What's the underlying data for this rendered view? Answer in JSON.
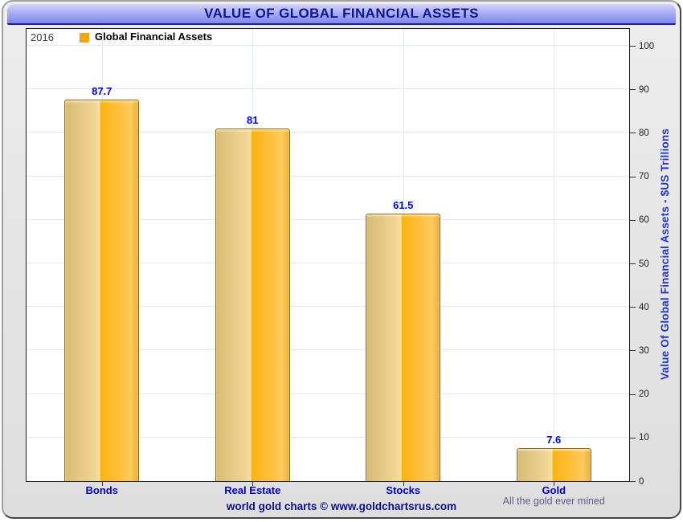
{
  "header": {
    "title": "VALUE OF GLOBAL FINANCIAL ASSETS"
  },
  "chart_data": {
    "type": "bar",
    "title": "VALUE OF GLOBAL FINANCIAL ASSETS",
    "categories": [
      "Bonds",
      "Real Estate",
      "Stocks",
      "Gold"
    ],
    "values": [
      87.7,
      81,
      61.5,
      7.6
    ],
    "value_labels": [
      "87.7",
      "81",
      "61.5",
      "7.6"
    ],
    "category_sublabels": [
      "",
      "",
      "",
      "All the gold ever mined"
    ],
    "series_name": "Global Financial Assets",
    "series_year": "2016",
    "xlabel": "",
    "ylabel": "Value Of Global Financial Assets - $US Trillions",
    "ylim": [
      0,
      100
    ],
    "yticks": [
      0,
      10,
      20,
      30,
      40,
      50,
      60,
      70,
      80,
      90,
      100
    ],
    "grid": true,
    "legend_position": "top-left"
  },
  "footer": {
    "text": "world gold charts © www.goldchartsrus.com"
  },
  "colors": {
    "header_gradient_top": "#d2d5fa",
    "header_gradient_bottom": "#7d85ea",
    "header_text": "#14148c",
    "bar_gold_light": "#f0d595",
    "bar_gold_bright": "#fcb30f",
    "bar_border": "#8c6f1d",
    "legend_swatch": "#f2a60e",
    "value_label": "#0000f2",
    "category_label": "#0000cd",
    "gold_sublabel": "#5d5d8f",
    "y_axis_title": "#1c35d4",
    "footer_text": "#0f0f8a",
    "gridline": "#dde9f5",
    "window_background": "#e4e4e4"
  }
}
